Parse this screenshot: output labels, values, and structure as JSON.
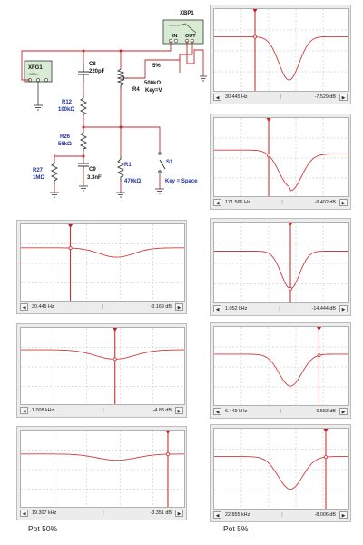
{
  "schematic": {
    "xbp_name": "XBP1",
    "xbp_in": "IN",
    "xbp_out": "OUT",
    "xfg_name": "XFG1",
    "xfg_pins": "+ COM -",
    "pot_percent": "5%",
    "c8_name": "C8",
    "c8_value": "220pF",
    "r4_name": "R4",
    "r4_value": "500kΩ",
    "r4_key": "Key=V",
    "r12_name": "R12",
    "r12_value": "100kΩ",
    "r26_name": "R26",
    "r26_value": "56kΩ",
    "r27_name": "R27",
    "r27_value": "1MΩ",
    "c9_name": "C9",
    "c9_value": "3.3nF",
    "r1_name": "R1",
    "r1_value": "470kΩ",
    "s1_name": "S1",
    "s1_key": "Key = Space"
  },
  "plots": [
    {
      "freq": "30.445 Hz",
      "gain": "-7.529 dB"
    },
    {
      "freq": "171.566 Hz",
      "gain": "-9.402 dB"
    },
    {
      "freq": "30.445 Hz",
      "gain": "-3.169 dB"
    },
    {
      "freq": "1.052 kHz",
      "gain": "-14.444 dB"
    },
    {
      "freq": "1.008 kHz",
      "gain": "-4.83 dB"
    },
    {
      "freq": "6.449 kHz",
      "gain": "-9.583 dB"
    },
    {
      "freq": "19.307 kHz",
      "gain": "-3.351 dB"
    },
    {
      "freq": "22.855 kHz",
      "gain": "-8.006 dB"
    }
  ],
  "captions": {
    "left": "Pot  50%",
    "right": "Pot  5%"
  },
  "colors": {
    "curve": "#d03a3a",
    "cursor": "#c81e1e",
    "grid": "#bdbdbd",
    "wire": "#c62828",
    "labels": "#1f2f9a"
  }
}
